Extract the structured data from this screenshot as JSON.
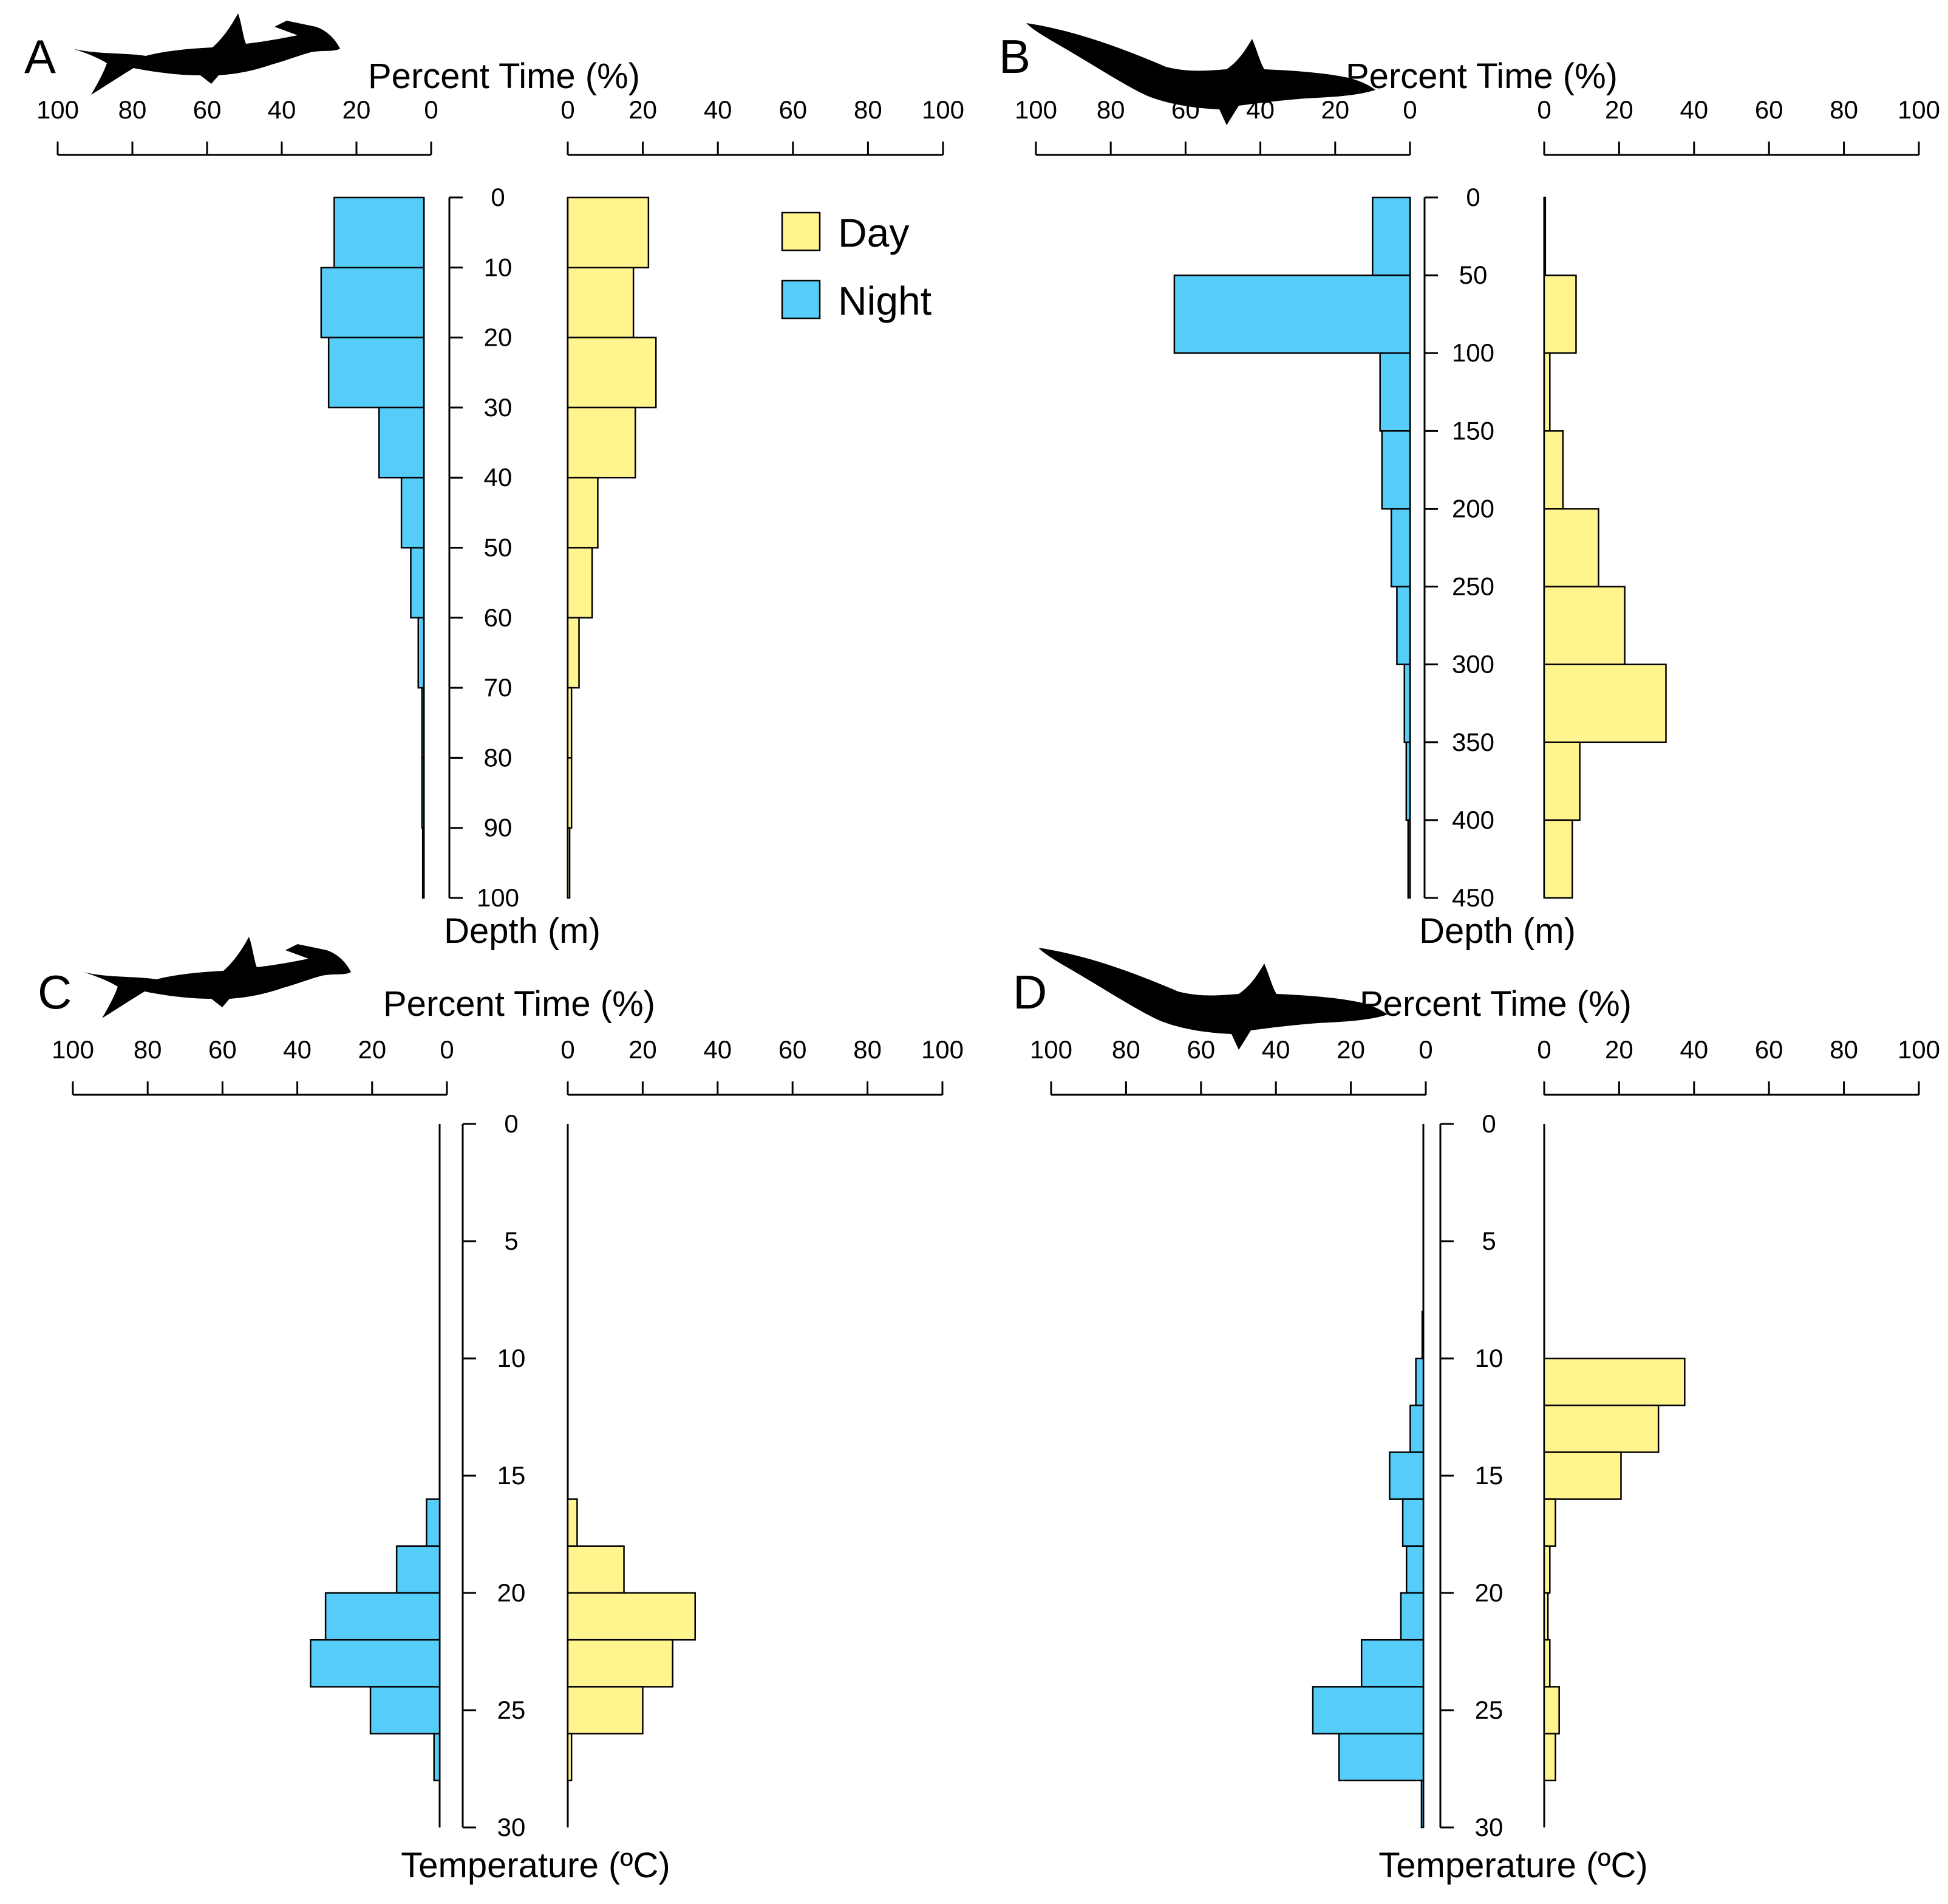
{
  "colors": {
    "day": "#FFF48D",
    "night": "#55CDF8"
  },
  "legend": [
    {
      "label": "Day",
      "color": "#FFF48D"
    },
    {
      "label": "Night",
      "color": "#55CDF8"
    }
  ],
  "chart_data": [
    {
      "panel": "A",
      "type": "bar",
      "orientation": "horizontal-mirrored",
      "icon": "hammerhead-shark-icon",
      "title": "Percent Time (%)",
      "ylabel": "Depth (m)",
      "xticks": [
        "100",
        "80",
        "60",
        "40",
        "20",
        "0"
      ],
      "xticks_right": [
        "0",
        "20",
        "40",
        "60",
        "80",
        "100"
      ],
      "xlim": [
        0,
        100
      ],
      "ylim": [
        0,
        100
      ],
      "yticks": [
        "0",
        "10",
        "20",
        "30",
        "40",
        "50",
        "60",
        "70",
        "80",
        "90",
        "100"
      ],
      "bins": [
        [
          0,
          10
        ],
        [
          10,
          20
        ],
        [
          20,
          30
        ],
        [
          30,
          40
        ],
        [
          40,
          50
        ],
        [
          50,
          60
        ],
        [
          60,
          70
        ],
        [
          70,
          80
        ],
        [
          80,
          90
        ],
        [
          90,
          100
        ]
      ],
      "series": [
        {
          "name": "Night",
          "values": [
            24,
            27.5,
            25.5,
            12,
            6,
            3.5,
            1.5,
            0.5,
            0.5,
            0.3
          ]
        },
        {
          "name": "Day",
          "values": [
            21.5,
            17.5,
            23.5,
            18,
            8,
            6.5,
            3,
            1,
            1,
            0.5
          ]
        }
      ]
    },
    {
      "panel": "B",
      "type": "bar",
      "orientation": "horizontal-mirrored",
      "icon": "thresher-shark-icon",
      "title": "Percent Time (%)",
      "ylabel": "Depth (m)",
      "xticks": [
        "100",
        "80",
        "60",
        "40",
        "20",
        "0"
      ],
      "xticks_right": [
        "0",
        "20",
        "40",
        "60",
        "80",
        "100"
      ],
      "xlim": [
        0,
        100
      ],
      "ylim": [
        0,
        450
      ],
      "yticks": [
        "0",
        "50",
        "100",
        "150",
        "200",
        "250",
        "300",
        "350",
        "400",
        "450"
      ],
      "bins": [
        [
          0,
          50
        ],
        [
          50,
          100
        ],
        [
          100,
          150
        ],
        [
          150,
          200
        ],
        [
          200,
          250
        ],
        [
          250,
          300
        ],
        [
          300,
          350
        ],
        [
          350,
          400
        ],
        [
          400,
          450
        ]
      ],
      "series": [
        {
          "name": "Night",
          "values": [
            10,
            63,
            8,
            7.5,
            5,
            3.5,
            1.5,
            1,
            0.5
          ]
        },
        {
          "name": "Day",
          "values": [
            0.3,
            8.5,
            1.5,
            5,
            14.5,
            21.5,
            32.5,
            9.5,
            7.5
          ]
        }
      ]
    },
    {
      "panel": "C",
      "type": "bar",
      "orientation": "horizontal-mirrored",
      "icon": "hammerhead-shark-icon",
      "title": "Percent Time (%)",
      "ylabel": "Temperature (ºC)",
      "xticks": [
        "100",
        "80",
        "60",
        "40",
        "20",
        "0"
      ],
      "xticks_right": [
        "0",
        "20",
        "40",
        "60",
        "80",
        "100"
      ],
      "xlim": [
        0,
        100
      ],
      "ylim": [
        0,
        30
      ],
      "yticks": [
        "0",
        "5",
        "10",
        "15",
        "20",
        "25",
        "30"
      ],
      "bins": [
        [
          16,
          18
        ],
        [
          18,
          20
        ],
        [
          20,
          22
        ],
        [
          22,
          24
        ],
        [
          24,
          26
        ],
        [
          26,
          28
        ]
      ],
      "series": [
        {
          "name": "Night",
          "values": [
            3.5,
            11.5,
            30.5,
            34.5,
            18.5,
            1.5
          ]
        },
        {
          "name": "Day",
          "values": [
            2.5,
            15,
            34,
            28,
            20,
            1
          ]
        }
      ]
    },
    {
      "panel": "D",
      "type": "bar",
      "orientation": "horizontal-mirrored",
      "icon": "thresher-shark-icon",
      "title": "Percent Time (%)",
      "ylabel": "Temperature (ºC)",
      "xticks": [
        "100",
        "80",
        "60",
        "40",
        "20",
        "0"
      ],
      "xticks_right": [
        "0",
        "20",
        "40",
        "60",
        "80",
        "100"
      ],
      "xlim": [
        0,
        100
      ],
      "ylim": [
        0,
        30
      ],
      "yticks": [
        "0",
        "5",
        "10",
        "15",
        "20",
        "25",
        "30"
      ],
      "bins": [
        [
          8,
          10
        ],
        [
          10,
          12
        ],
        [
          12,
          14
        ],
        [
          14,
          16
        ],
        [
          16,
          18
        ],
        [
          18,
          20
        ],
        [
          20,
          22
        ],
        [
          22,
          24
        ],
        [
          24,
          26
        ],
        [
          26,
          28
        ],
        [
          28,
          30
        ]
      ],
      "series": [
        {
          "name": "Night",
          "values": [
            0.3,
            2,
            3.5,
            9,
            5.5,
            4.5,
            6,
            16.5,
            29.5,
            22.5,
            0.5
          ]
        },
        {
          "name": "Day",
          "values": [
            0,
            37.5,
            30.5,
            20.5,
            3,
            1.5,
            1,
            1.5,
            4,
            3,
            0
          ]
        }
      ]
    }
  ]
}
